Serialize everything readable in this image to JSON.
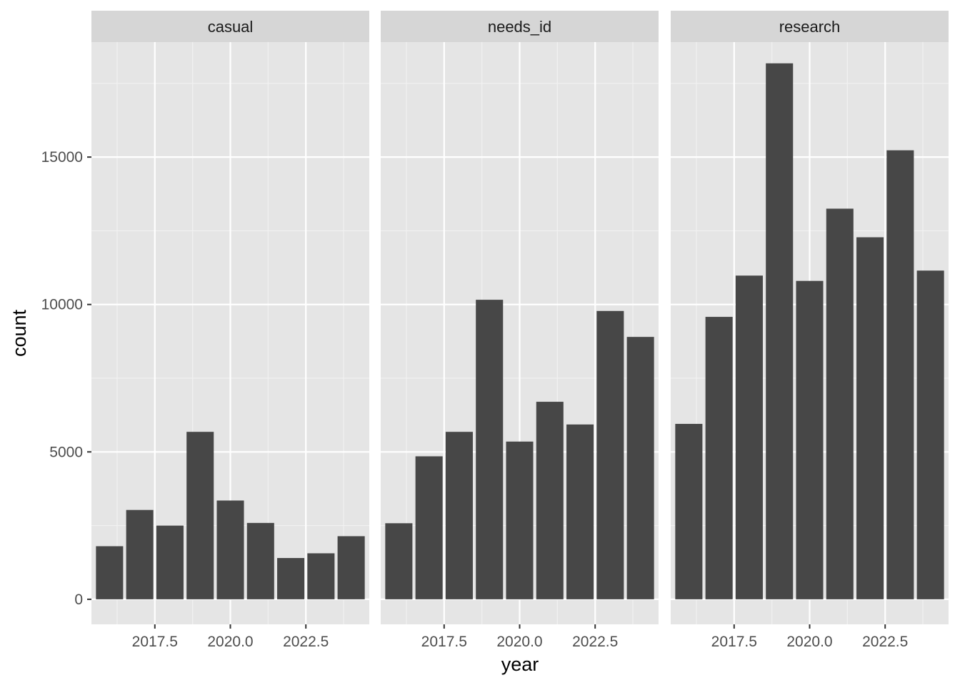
{
  "chart_data": {
    "type": "bar",
    "facet_by": "category",
    "xlabel": "year",
    "ylabel": "count",
    "xlim": [
      2015.4,
      2024.6
    ],
    "ylim": [
      -850,
      18900
    ],
    "x_ticks": [
      2017.5,
      2020.0,
      2022.5
    ],
    "x_tick_labels": [
      "2017.5",
      "2020.0",
      "2022.5"
    ],
    "y_ticks": [
      0,
      5000,
      10000,
      15000
    ],
    "y_tick_labels": [
      "0",
      "5000",
      "10000",
      "15000"
    ],
    "grid": true,
    "bar_color": "#474747",
    "panel_background": "#e5e5e5",
    "strip_background": "#d6d6d6",
    "x": [
      2016,
      2017,
      2018,
      2019,
      2020,
      2021,
      2022,
      2023,
      2024
    ],
    "facets": [
      {
        "label": "casual",
        "values": [
          1800,
          3030,
          2500,
          5680,
          3350,
          2590,
          1400,
          1560,
          2140
        ]
      },
      {
        "label": "needs_id",
        "values": [
          2580,
          4850,
          5680,
          10160,
          5350,
          6700,
          5930,
          9780,
          8900
        ]
      },
      {
        "label": "research",
        "values": [
          5950,
          9580,
          10980,
          18180,
          10800,
          13250,
          12280,
          15230,
          11150
        ]
      }
    ]
  }
}
